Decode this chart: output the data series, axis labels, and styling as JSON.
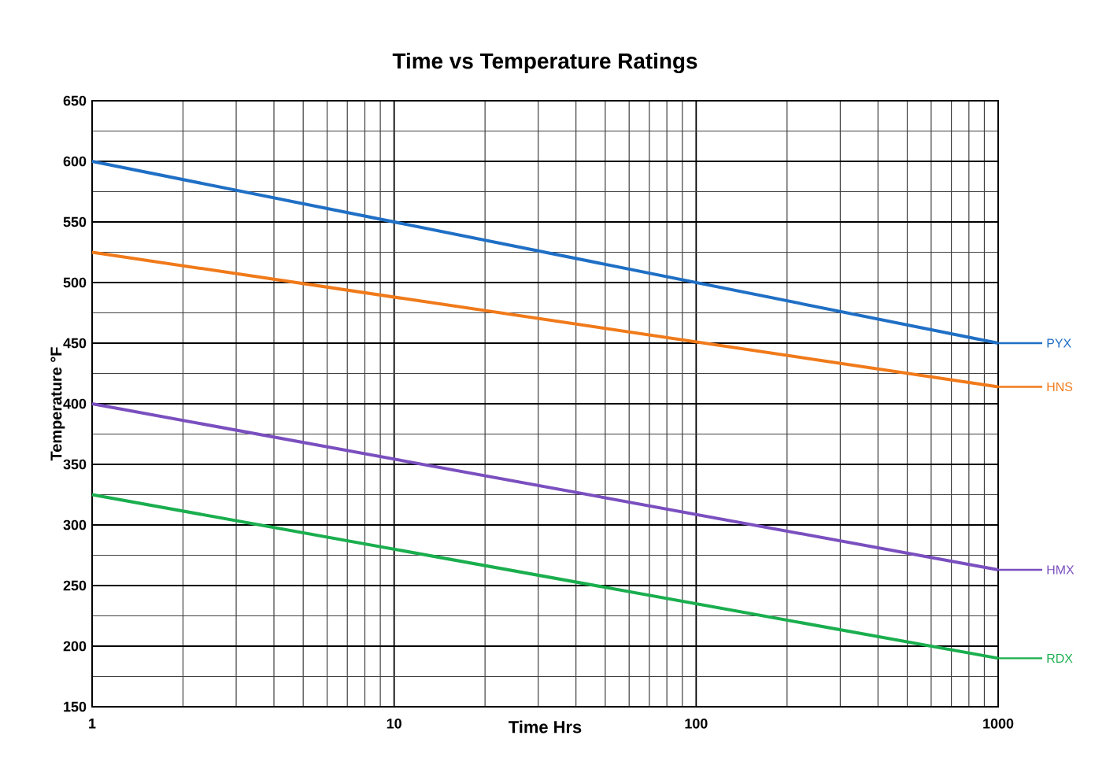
{
  "chart_data": {
    "type": "line",
    "title": "Time vs Temperature Ratings",
    "xlabel": "Time Hrs",
    "ylabel": "Temperature °F",
    "log": "x",
    "grid": true,
    "legend": "right",
    "xlim": [
      1,
      1000
    ],
    "xticks": [
      1,
      10,
      100,
      1000
    ],
    "ylim": [
      150,
      650
    ],
    "yticks": [
      150,
      200,
      250,
      300,
      350,
      400,
      450,
      500,
      550,
      600,
      650
    ],
    "x": [
      1,
      1000
    ],
    "series": [
      {
        "name": "PYX",
        "color": "#1f6fc5",
        "values": [
          600,
          450
        ]
      },
      {
        "name": "HNS",
        "color": "#f07a1a",
        "values": [
          525,
          414
        ]
      },
      {
        "name": "HMX",
        "color": "#7a4fbf",
        "values": [
          400,
          263
        ]
      },
      {
        "name": "RDX",
        "color": "#1aae4e",
        "values": [
          325,
          190
        ]
      }
    ]
  }
}
